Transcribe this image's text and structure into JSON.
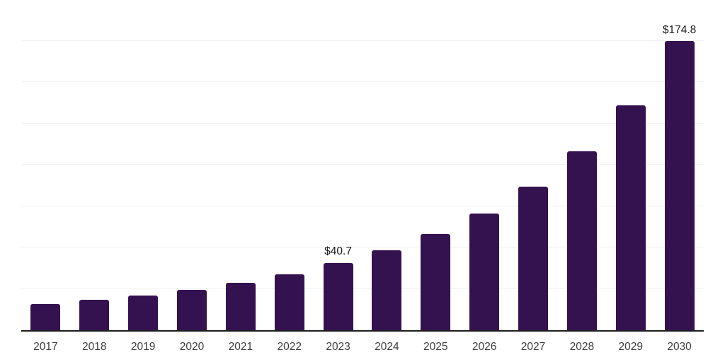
{
  "chart_data": {
    "type": "bar",
    "categories": [
      "2017",
      "2018",
      "2019",
      "2020",
      "2021",
      "2022",
      "2023",
      "2024",
      "2025",
      "2026",
      "2027",
      "2028",
      "2029",
      "2030"
    ],
    "values": [
      15.9,
      18.3,
      21.0,
      24.4,
      28.6,
      33.7,
      40.7,
      48.2,
      58.2,
      70.6,
      86.8,
      108.2,
      135.9,
      174.8
    ],
    "bar_labels": [
      "",
      "",
      "",
      "",
      "",
      "",
      "$40.7",
      "",
      "",
      "",
      "",
      "",
      "",
      "$174.8"
    ],
    "ylim": [
      0,
      200
    ],
    "grid_step": 25,
    "grid": "horizontal",
    "legend": "none",
    "y_axis_labels_shown": false,
    "colors": {
      "bar": "#341250",
      "axis": "#1c1c1c",
      "grid": "#f0f0f0",
      "value_label": "#1a1a1a",
      "tick_label": "#3d3d3d"
    }
  }
}
